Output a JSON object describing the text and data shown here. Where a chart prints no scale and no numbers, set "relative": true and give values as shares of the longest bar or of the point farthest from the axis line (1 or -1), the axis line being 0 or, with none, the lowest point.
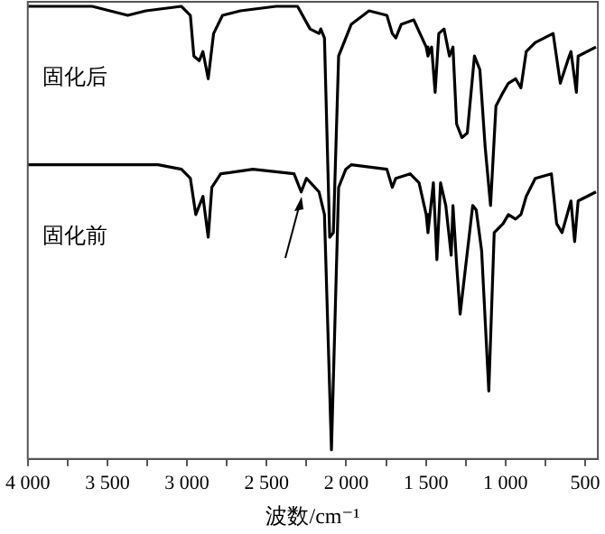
{
  "chart_data": {
    "type": "line",
    "relative": true,
    "xlabel": "波数/cm⁻¹",
    "xlim": [
      4000,
      420
    ],
    "xticks": [
      {
        "value": 4000,
        "label": "4 000"
      },
      {
        "value": 3750,
        "label": null
      },
      {
        "value": 3500,
        "label": "3 500"
      },
      {
        "value": 3250,
        "label": null
      },
      {
        "value": 3000,
        "label": "3 000"
      },
      {
        "value": 2750,
        "label": null
      },
      {
        "value": 2500,
        "label": "2 500"
      },
      {
        "value": 2250,
        "label": null
      },
      {
        "value": 2000,
        "label": "2 000"
      },
      {
        "value": 1750,
        "label": null
      },
      {
        "value": 1500,
        "label": "1 500"
      },
      {
        "value": 1250,
        "label": null
      },
      {
        "value": 1000,
        "label": "1 000"
      },
      {
        "value": 750,
        "label": null
      },
      {
        "value": 500,
        "label": "500"
      }
    ],
    "legend": false,
    "marker": "none",
    "line_style": "solid",
    "series": [
      {
        "name": "固化后",
        "color": "#000000",
        "x": [
          4000,
          3596,
          3372,
          3259,
          3035,
          2979,
          2957,
          2923,
          2900,
          2867,
          2833,
          2777,
          2665,
          2440,
          2306,
          2227,
          2171,
          2160,
          2137,
          2104,
          2081,
          2048,
          1969,
          1857,
          1745,
          1711,
          1689,
          1655,
          1576,
          1498,
          1487,
          1464,
          1442,
          1419,
          1386,
          1352,
          1330,
          1307,
          1274,
          1240,
          1195,
          1161,
          1128,
          1094,
          1060,
          1015,
          982,
          937,
          903,
          870,
          813,
          701,
          656,
          600,
          589,
          555,
          544,
          432
        ],
        "values": [
          1.0,
          1.0,
          0.98,
          0.99,
          1.0,
          0.98,
          0.89,
          0.88,
          0.9,
          0.84,
          0.94,
          0.98,
          0.99,
          1.0,
          1.0,
          0.95,
          0.94,
          0.95,
          0.93,
          0.49,
          0.5,
          0.89,
          0.96,
          0.99,
          0.98,
          0.94,
          0.93,
          0.96,
          0.97,
          0.91,
          0.89,
          0.91,
          0.81,
          0.94,
          0.95,
          0.89,
          0.91,
          0.74,
          0.71,
          0.72,
          0.89,
          0.86,
          0.69,
          0.56,
          0.78,
          0.81,
          0.83,
          0.84,
          0.82,
          0.9,
          0.92,
          0.94,
          0.83,
          0.89,
          0.9,
          0.81,
          0.89,
          0.91
        ]
      },
      {
        "name": "固化前",
        "color": "#000000",
        "x": [
          4000,
          3405,
          3181,
          3035,
          2979,
          2945,
          2900,
          2867,
          2844,
          2788,
          2586,
          2328,
          2283,
          2250,
          2171,
          2137,
          2093,
          2048,
          2003,
          1969,
          1745,
          1711,
          1689,
          1599,
          1543,
          1498,
          1487,
          1453,
          1431,
          1408,
          1375,
          1341,
          1330,
          1307,
          1285,
          1206,
          1184,
          1150,
          1105,
          1071,
          1015,
          982,
          937,
          903,
          870,
          813,
          712,
          679,
          645,
          589,
          566,
          544,
          432
        ],
        "values": [
          0.65,
          0.65,
          0.65,
          0.64,
          0.62,
          0.54,
          0.58,
          0.49,
          0.6,
          0.63,
          0.64,
          0.63,
          0.59,
          0.62,
          0.59,
          0.54,
          0.02,
          0.6,
          0.64,
          0.65,
          0.64,
          0.6,
          0.62,
          0.63,
          0.61,
          0.54,
          0.5,
          0.61,
          0.44,
          0.61,
          0.56,
          0.45,
          0.56,
          0.43,
          0.32,
          0.56,
          0.55,
          0.46,
          0.15,
          0.5,
          0.52,
          0.54,
          0.53,
          0.54,
          0.58,
          0.62,
          0.63,
          0.52,
          0.5,
          0.57,
          0.48,
          0.57,
          0.59
        ]
      }
    ]
  }
}
